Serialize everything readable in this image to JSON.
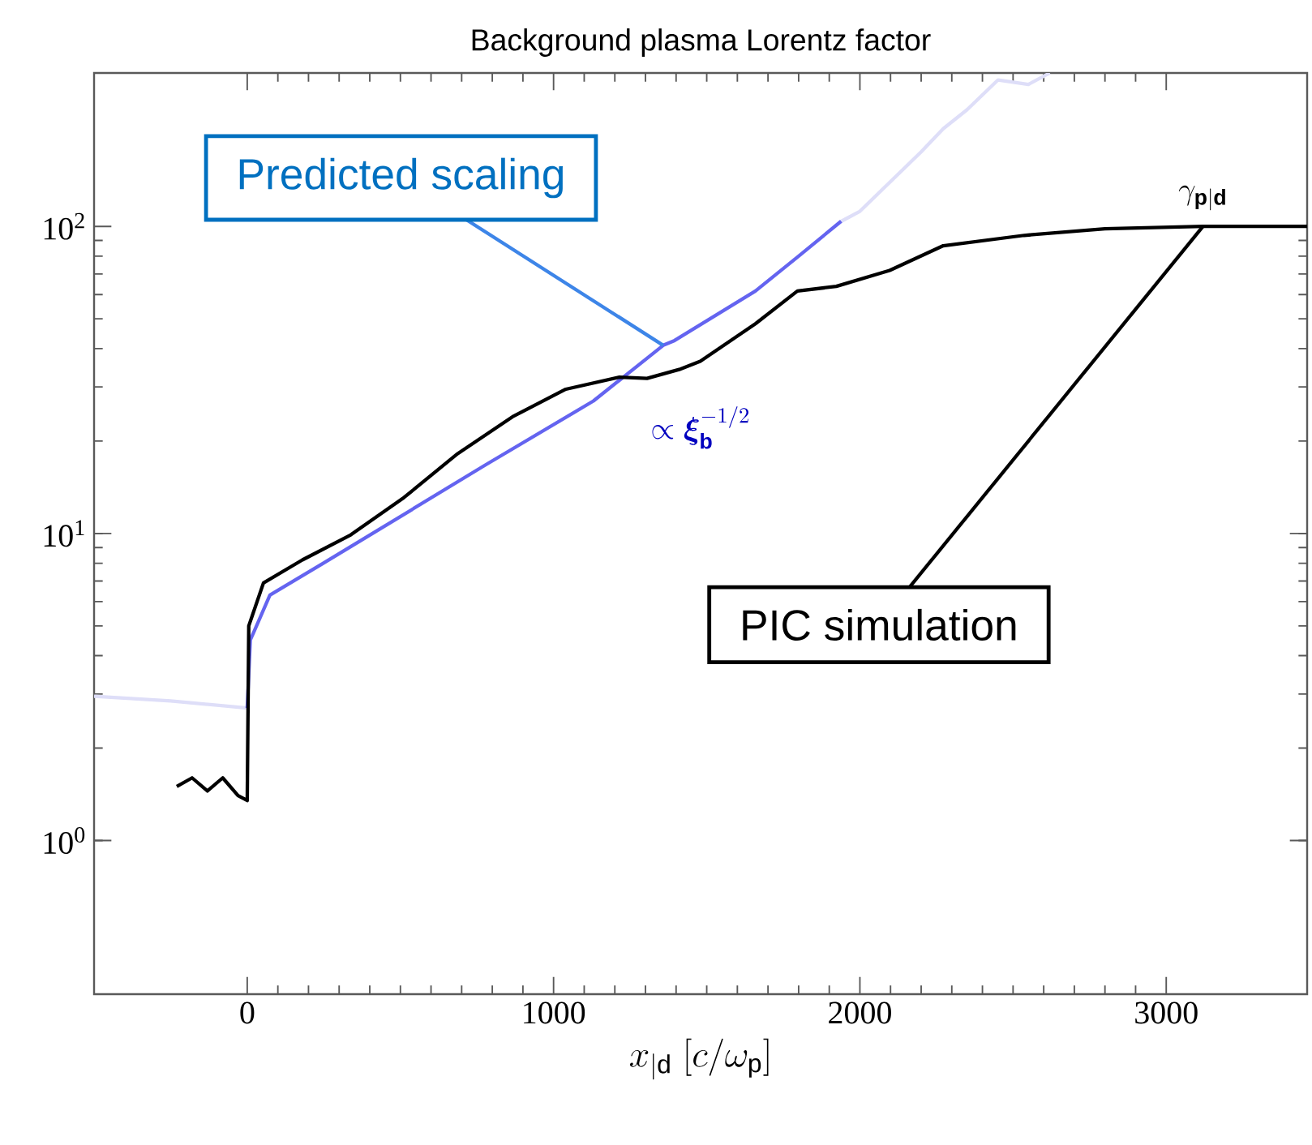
{
  "chart_data": {
    "type": "line",
    "title": "Background plasma Lorentz factor",
    "xlabel": "x_{|\\mathrm{d}}\\ [c/\\omega_{\\mathrm{p}}]",
    "log": "y",
    "grid": false,
    "legend": false,
    "marker": "none",
    "line_style": "solid",
    "xlim": [
      -500,
      3460
    ],
    "ylim": [
      0.316,
      316
    ],
    "xticks": [
      0,
      1000,
      2000,
      3000
    ],
    "yticks": [
      {
        "value": 1,
        "label": "10$^{0}$"
      },
      {
        "value": 10,
        "label": "10$^{1}$"
      },
      {
        "value": 100,
        "label": "10$^{2}$"
      }
    ],
    "annotations": [
      "\\propto \\boldsymbol{\\xi}_{\\mathbf{b}}^{-1/2}",
      {
        "text": "\\gamma_{\\mathbf{p|d}}",
        "x": 3120,
        "y": 100
      }
    ],
    "series": [
      {
        "color": "#dedef8",
        "x": [
          -500,
          -250,
          0
        ],
        "values": [
          2.95,
          2.85,
          2.7
        ]
      },
      {
        "color": "#dedef8",
        "x": [
          1940,
          2000,
          2100,
          2200,
          2272,
          2350,
          2451,
          2550,
          2620
        ],
        "values": [
          104,
          112,
          140,
          175,
          208,
          240,
          300,
          290,
          316
        ]
      },
      {
        "name": "Predicted scaling",
        "color": "#6464f0",
        "x": [
          0,
          10,
          21,
          74,
          248,
          423,
          777,
          1130,
          1358,
          1395,
          1659,
          1800,
          1939
        ],
        "values": [
          2.7,
          4.5,
          4.76,
          6.3,
          8.0,
          10.2,
          16.7,
          27,
          41,
          42.5,
          61.6,
          80,
          104
        ]
      },
      {
        "name": "PIC simulation",
        "color": "#000000",
        "x": [
          -230,
          -180,
          -130,
          -80,
          -30,
          0,
          5,
          53,
          180,
          338,
          512,
          687,
          866,
          1040,
          1215,
          1305,
          1410,
          1479,
          1659,
          1796,
          1923,
          2097,
          2272,
          2536,
          2800,
          3120,
          3460
        ],
        "values": [
          1.5,
          1.6,
          1.45,
          1.6,
          1.4,
          1.35,
          5.0,
          6.9,
          8.2,
          9.9,
          13.1,
          18.2,
          24,
          29.5,
          32.3,
          32,
          34.2,
          36.4,
          48.2,
          61.6,
          63.8,
          71.9,
          86.5,
          93.5,
          98.3,
          100,
          100
        ]
      }
    ]
  }
}
